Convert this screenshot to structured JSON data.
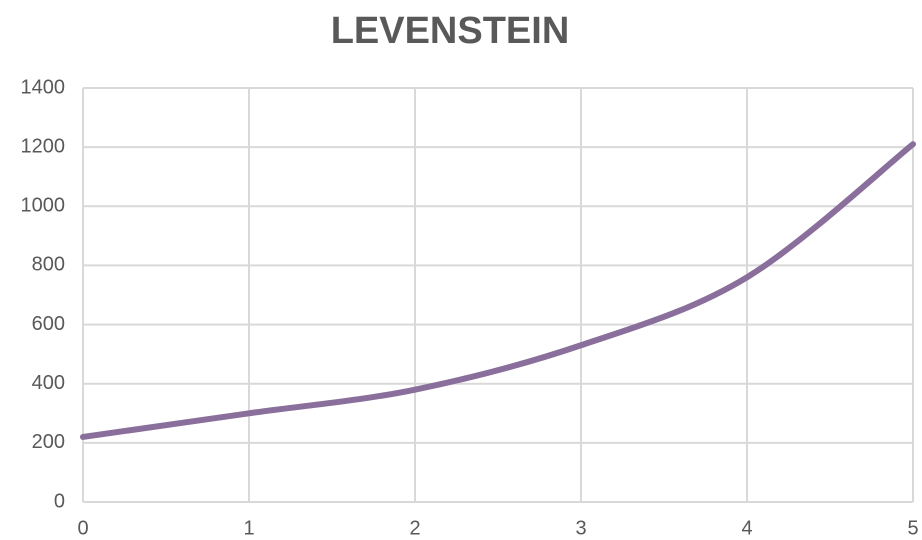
{
  "chart_data": {
    "type": "line",
    "title": "LEVENSTEIN",
    "x": [
      0,
      1,
      2,
      3,
      4,
      5
    ],
    "series": [
      {
        "name": "LEVENSTEIN",
        "color": "#8a6e9b",
        "values": [
          220,
          300,
          380,
          530,
          760,
          1210
        ]
      }
    ],
    "xlim": [
      0,
      5
    ],
    "xticks": [
      0,
      1,
      2,
      3,
      4,
      5
    ],
    "ylim": [
      0,
      1400
    ],
    "yticks": [
      0,
      200,
      400,
      600,
      800,
      1000,
      1200,
      1400
    ],
    "grid": true,
    "smooth": true
  }
}
